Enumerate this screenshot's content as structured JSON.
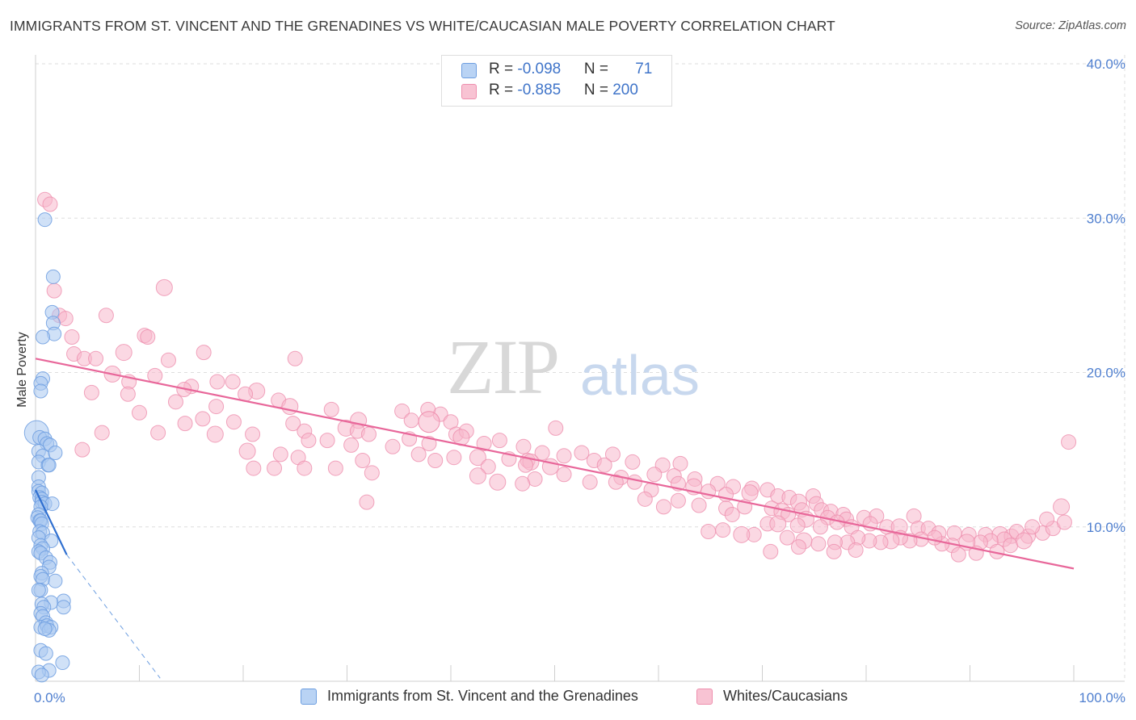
{
  "header": {
    "title": "IMMIGRANTS FROM ST. VINCENT AND THE GRENADINES VS WHITE/CAUCASIAN MALE POVERTY CORRELATION CHART",
    "source": "Source: ZipAtlas.com"
  },
  "watermark": {
    "zip": "ZIP",
    "atlas": "atlas"
  },
  "legend": {
    "rows": [
      {
        "r_label": "R = ",
        "r_value": "-0.098",
        "n_label": "N = ",
        "n_value": "71"
      },
      {
        "r_label": "R = ",
        "r_value": "-0.885",
        "n_label": "N = ",
        "n_value": "200"
      }
    ]
  },
  "bottom_legend": {
    "items": [
      {
        "label": "Immigrants from St. Vincent and the Grenadines"
      },
      {
        "label": "Whites/Caucasians"
      }
    ]
  },
  "colors": {
    "blue_fill": "#a9c8f0",
    "blue_stroke": "#6d9ee0",
    "blue_line": "#2f6fd0",
    "pink_fill": "#f7b8cc",
    "pink_stroke": "#ee8fae",
    "pink_line": "#e8679a",
    "grid": "#dedede",
    "tick_text": "#4f7fcf"
  },
  "chart_data": {
    "type": "scatter",
    "title": "IMMIGRANTS FROM ST. VINCENT AND THE GRENADINES VS WHITE/CAUCASIAN MALE POVERTY CORRELATION CHART",
    "xlabel": "",
    "ylabel": "Male Poverty",
    "xlim": [
      0,
      100
    ],
    "ylim": [
      0,
      40
    ],
    "x_tick_labels": [
      "0.0%",
      "100.0%"
    ],
    "y_ticks": [
      10,
      20,
      30,
      40
    ],
    "y_tick_labels": [
      "10.0%",
      "20.0%",
      "30.0%",
      "40.0%"
    ],
    "grid": true,
    "legend_position": "top-center",
    "series": [
      {
        "name": "Immigrants from St. Vincent and the Grenadines",
        "color": "#a9c8f0",
        "points": [
          [
            0.1,
            16.1
          ],
          [
            0.9,
            29.9
          ],
          [
            1.7,
            26.2
          ],
          [
            1.6,
            23.9
          ],
          [
            1.7,
            23.2
          ],
          [
            1.8,
            22.5
          ],
          [
            0.7,
            22.3
          ],
          [
            0.7,
            19.6
          ],
          [
            0.5,
            19.3
          ],
          [
            0.5,
            18.8
          ],
          [
            0.4,
            15.8
          ],
          [
            0.9,
            15.7
          ],
          [
            1.1,
            15.4
          ],
          [
            1.4,
            15.3
          ],
          [
            0.3,
            14.9
          ],
          [
            0.7,
            14.6
          ],
          [
            1.9,
            14.8
          ],
          [
            0.3,
            14.2
          ],
          [
            1.2,
            14.0
          ],
          [
            1.3,
            14.0
          ],
          [
            0.3,
            13.2
          ],
          [
            0.3,
            12.6
          ],
          [
            0.3,
            12.3
          ],
          [
            0.6,
            12.2
          ],
          [
            0.4,
            11.9
          ],
          [
            0.6,
            11.8
          ],
          [
            0.6,
            11.6
          ],
          [
            0.9,
            11.5
          ],
          [
            1.6,
            11.5
          ],
          [
            0.5,
            11.3
          ],
          [
            0.3,
            10.8
          ],
          [
            0.2,
            10.6
          ],
          [
            0.4,
            10.4
          ],
          [
            0.5,
            10.4
          ],
          [
            0.6,
            10.2
          ],
          [
            0.4,
            9.7
          ],
          [
            0.7,
            9.6
          ],
          [
            0.3,
            9.3
          ],
          [
            1.5,
            9.1
          ],
          [
            0.5,
            8.8
          ],
          [
            0.7,
            8.6
          ],
          [
            0.3,
            8.4
          ],
          [
            0.5,
            8.3
          ],
          [
            1.0,
            8.0
          ],
          [
            1.4,
            7.7
          ],
          [
            1.3,
            7.4
          ],
          [
            0.6,
            7.0
          ],
          [
            0.5,
            6.8
          ],
          [
            0.7,
            6.6
          ],
          [
            1.9,
            6.5
          ],
          [
            0.5,
            5.9
          ],
          [
            0.3,
            5.9
          ],
          [
            2.7,
            5.2
          ],
          [
            1.5,
            5.1
          ],
          [
            0.6,
            5.0
          ],
          [
            0.8,
            4.8
          ],
          [
            2.7,
            4.8
          ],
          [
            0.5,
            4.4
          ],
          [
            0.7,
            4.2
          ],
          [
            1.0,
            3.8
          ],
          [
            0.5,
            3.5
          ],
          [
            1.1,
            3.6
          ],
          [
            1.5,
            3.5
          ],
          [
            1.3,
            3.3
          ],
          [
            0.9,
            3.4
          ],
          [
            0.5,
            2.0
          ],
          [
            1.0,
            1.8
          ],
          [
            2.6,
            1.2
          ],
          [
            1.3,
            0.7
          ],
          [
            0.3,
            0.6
          ],
          [
            0.6,
            0.4
          ]
        ],
        "trend": {
          "x": [
            0,
            3.0
          ],
          "y": [
            12.4,
            8.2
          ]
        },
        "trend_extension": {
          "x": [
            3.0,
            12.0
          ],
          "y": [
            8.2,
            0.2
          ]
        }
      },
      {
        "name": "Whites/Caucasians",
        "color": "#f7b8cc",
        "points": [
          [
            0.9,
            31.2
          ],
          [
            1.4,
            30.9
          ],
          [
            1.8,
            25.3
          ],
          [
            12.4,
            25.5
          ],
          [
            2.3,
            23.7
          ],
          [
            6.8,
            23.7
          ],
          [
            2.9,
            23.5
          ],
          [
            10.5,
            22.4
          ],
          [
            10.8,
            22.3
          ],
          [
            3.5,
            22.3
          ],
          [
            8.5,
            21.3
          ],
          [
            3.7,
            21.2
          ],
          [
            16.2,
            21.3
          ],
          [
            4.7,
            20.9
          ],
          [
            5.8,
            20.9
          ],
          [
            12.8,
            20.8
          ],
          [
            25.0,
            20.9
          ],
          [
            7.4,
            19.9
          ],
          [
            9.0,
            19.4
          ],
          [
            11.5,
            19.8
          ],
          [
            17.5,
            19.4
          ],
          [
            19.0,
            19.4
          ],
          [
            15.0,
            19.1
          ],
          [
            14.3,
            18.9
          ],
          [
            21.3,
            18.8
          ],
          [
            5.4,
            18.7
          ],
          [
            8.9,
            18.6
          ],
          [
            20.2,
            18.6
          ],
          [
            23.4,
            18.2
          ],
          [
            13.5,
            18.1
          ],
          [
            17.4,
            17.8
          ],
          [
            24.5,
            17.8
          ],
          [
            28.5,
            17.6
          ],
          [
            10.0,
            17.4
          ],
          [
            39.0,
            17.3
          ],
          [
            35.3,
            17.5
          ],
          [
            37.8,
            17.6
          ],
          [
            16.1,
            17.0
          ],
          [
            31.1,
            16.9
          ],
          [
            14.4,
            16.7
          ],
          [
            19.1,
            16.8
          ],
          [
            24.8,
            16.7
          ],
          [
            36.2,
            16.9
          ],
          [
            40.0,
            16.8
          ],
          [
            25.9,
            16.2
          ],
          [
            29.9,
            16.4
          ],
          [
            31.0,
            16.2
          ],
          [
            32.1,
            16.0
          ],
          [
            40.5,
            16.0
          ],
          [
            41.5,
            16.2
          ],
          [
            50.1,
            16.4
          ],
          [
            20.9,
            16.0
          ],
          [
            17.3,
            16.0
          ],
          [
            11.8,
            16.1
          ],
          [
            6.4,
            16.1
          ],
          [
            26.3,
            15.6
          ],
          [
            28.1,
            15.6
          ],
          [
            36.0,
            15.7
          ],
          [
            37.9,
            15.4
          ],
          [
            41.0,
            15.8
          ],
          [
            43.2,
            15.4
          ],
          [
            44.7,
            15.6
          ],
          [
            47.0,
            15.2
          ],
          [
            30.4,
            15.3
          ],
          [
            34.4,
            15.2
          ],
          [
            4.5,
            15.0
          ],
          [
            20.4,
            14.9
          ],
          [
            23.6,
            14.7
          ],
          [
            25.3,
            14.5
          ],
          [
            31.5,
            14.3
          ],
          [
            36.9,
            14.7
          ],
          [
            38.5,
            14.3
          ],
          [
            40.3,
            14.5
          ],
          [
            42.6,
            14.5
          ],
          [
            45.6,
            14.4
          ],
          [
            47.4,
            14.3
          ],
          [
            48.8,
            14.8
          ],
          [
            50.9,
            14.6
          ],
          [
            52.6,
            14.8
          ],
          [
            55.6,
            14.7
          ],
          [
            47.7,
            14.2
          ],
          [
            21.0,
            13.8
          ],
          [
            23.0,
            13.8
          ],
          [
            25.9,
            13.8
          ],
          [
            28.9,
            13.8
          ],
          [
            43.6,
            13.9
          ],
          [
            47.2,
            14.0
          ],
          [
            49.6,
            13.9
          ],
          [
            53.8,
            14.3
          ],
          [
            54.8,
            14.0
          ],
          [
            57.5,
            14.2
          ],
          [
            60.4,
            14.0
          ],
          [
            62.1,
            14.1
          ],
          [
            32.4,
            13.5
          ],
          [
            42.6,
            13.3
          ],
          [
            48.1,
            13.1
          ],
          [
            50.9,
            13.4
          ],
          [
            56.4,
            13.2
          ],
          [
            59.6,
            13.4
          ],
          [
            61.5,
            13.3
          ],
          [
            63.5,
            13.1
          ],
          [
            44.5,
            12.9
          ],
          [
            46.9,
            12.8
          ],
          [
            53.4,
            12.9
          ],
          [
            55.9,
            12.9
          ],
          [
            57.7,
            12.9
          ],
          [
            59.3,
            12.4
          ],
          [
            61.9,
            12.8
          ],
          [
            63.4,
            12.6
          ],
          [
            65.7,
            12.8
          ],
          [
            67.2,
            12.6
          ],
          [
            69.0,
            12.5
          ],
          [
            70.5,
            12.4
          ],
          [
            64.8,
            12.3
          ],
          [
            66.5,
            12.1
          ],
          [
            68.8,
            12.2
          ],
          [
            71.5,
            12.0
          ],
          [
            72.6,
            11.9
          ],
          [
            74.9,
            12.0
          ],
          [
            58.7,
            11.8
          ],
          [
            61.9,
            11.7
          ],
          [
            31.9,
            11.6
          ],
          [
            73.5,
            11.6
          ],
          [
            75.2,
            11.5
          ],
          [
            60.5,
            11.3
          ],
          [
            63.9,
            11.4
          ],
          [
            66.5,
            11.2
          ],
          [
            68.3,
            11.3
          ],
          [
            70.9,
            11.2
          ],
          [
            71.9,
            11.0
          ],
          [
            73.8,
            11.1
          ],
          [
            75.7,
            11.1
          ],
          [
            76.6,
            11.0
          ],
          [
            77.8,
            10.8
          ],
          [
            67.1,
            10.8
          ],
          [
            72.5,
            10.8
          ],
          [
            74.2,
            10.5
          ],
          [
            76.3,
            10.6
          ],
          [
            78.1,
            10.5
          ],
          [
            79.8,
            10.6
          ],
          [
            81.0,
            10.7
          ],
          [
            84.6,
            10.7
          ],
          [
            70.5,
            10.2
          ],
          [
            71.5,
            10.2
          ],
          [
            73.4,
            10.1
          ],
          [
            75.6,
            10.0
          ],
          [
            77.2,
            10.3
          ],
          [
            78.6,
            10.0
          ],
          [
            80.4,
            10.2
          ],
          [
            82.0,
            10.0
          ],
          [
            83.2,
            10.0
          ],
          [
            85.0,
            9.9
          ],
          [
            86.0,
            9.9
          ],
          [
            87.0,
            9.6
          ],
          [
            88.5,
            9.6
          ],
          [
            89.9,
            9.5
          ],
          [
            91.5,
            9.5
          ],
          [
            92.9,
            9.5
          ],
          [
            94.0,
            9.4
          ],
          [
            95.6,
            9.4
          ],
          [
            97.0,
            9.6
          ],
          [
            98.0,
            9.9
          ],
          [
            99.1,
            10.3
          ],
          [
            99.5,
            15.5
          ],
          [
            98.8,
            11.3
          ],
          [
            97.4,
            10.5
          ],
          [
            96.0,
            10.0
          ],
          [
            94.5,
            9.7
          ],
          [
            93.3,
            9.2
          ],
          [
            92.0,
            9.1
          ],
          [
            91.0,
            9.0
          ],
          [
            89.7,
            9.0
          ],
          [
            88.3,
            8.8
          ],
          [
            87.3,
            8.9
          ],
          [
            86.6,
            9.3
          ],
          [
            85.3,
            9.2
          ],
          [
            84.2,
            9.1
          ],
          [
            83.3,
            9.3
          ],
          [
            82.4,
            9.1
          ],
          [
            81.4,
            9.0
          ],
          [
            80.3,
            9.1
          ],
          [
            79.2,
            9.3
          ],
          [
            78.2,
            9.0
          ],
          [
            77.0,
            9.0
          ],
          [
            75.4,
            8.9
          ],
          [
            74.0,
            9.1
          ],
          [
            72.4,
            9.3
          ],
          [
            79.0,
            8.5
          ],
          [
            76.9,
            8.4
          ],
          [
            73.5,
            8.7
          ],
          [
            70.8,
            8.4
          ],
          [
            69.2,
            9.5
          ],
          [
            68.0,
            9.5
          ],
          [
            66.2,
            9.8
          ],
          [
            64.8,
            9.7
          ],
          [
            88.9,
            8.2
          ],
          [
            90.6,
            8.3
          ],
          [
            92.6,
            8.4
          ],
          [
            93.9,
            8.8
          ],
          [
            95.2,
            9.1
          ]
        ],
        "trend": {
          "x": [
            0,
            100
          ],
          "y": [
            20.9,
            7.3
          ]
        }
      }
    ]
  }
}
